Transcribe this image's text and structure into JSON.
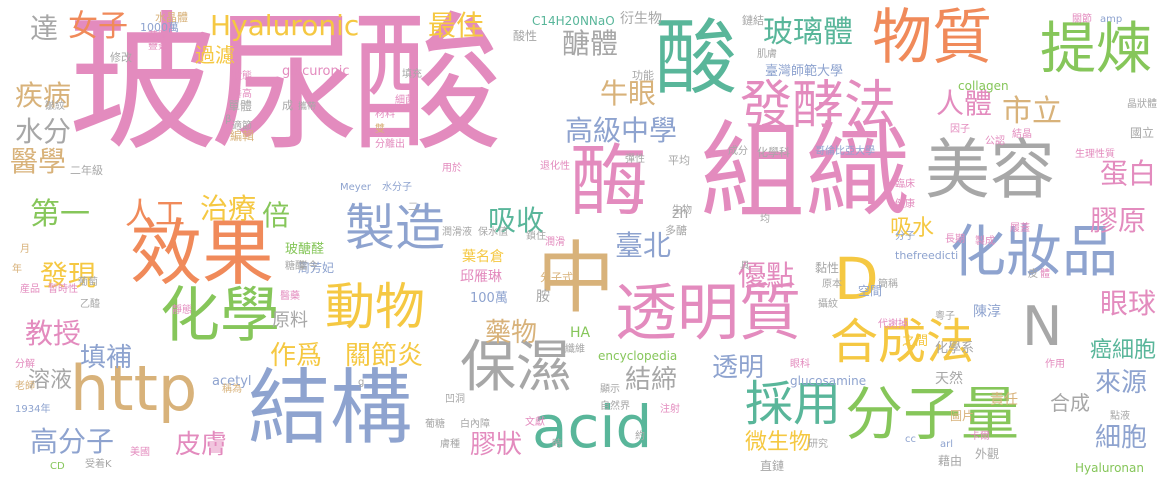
{
  "words": [
    {
      "text": "玻尿酸",
      "color": "#e38bbe"
    },
    {
      "text": "組織",
      "color": "#e38bbe"
    },
    {
      "text": "美容",
      "color": "#a7a7a7"
    },
    {
      "text": "效果",
      "color": "#f08a5a"
    },
    {
      "text": "結構",
      "color": "#8ea3cf"
    },
    {
      "text": "酶",
      "color": "#e38bbe"
    },
    {
      "text": "中",
      "color": "#d8b27a"
    },
    {
      "text": "化學",
      "color": "#86c65a"
    },
    {
      "text": "酸",
      "color": "#59b69a"
    },
    {
      "text": "物質",
      "color": "#f08a5a"
    },
    {
      "text": "提煉",
      "color": "#86c65a"
    },
    {
      "text": "發酵法",
      "color": "#e38bbe"
    },
    {
      "text": "化妝品",
      "color": "#8ea3cf"
    },
    {
      "text": "透明質",
      "color": "#e38bbe"
    },
    {
      "text": "製造",
      "color": "#8ea3cf"
    },
    {
      "text": "分子量",
      "color": "#86c65a"
    },
    {
      "text": "保濕",
      "color": "#a7a7a7"
    },
    {
      "text": "http",
      "color": "#d8b27a"
    },
    {
      "text": "合成法",
      "color": "#f5c842"
    },
    {
      "text": "acid",
      "color": "#59b69a"
    },
    {
      "text": "採用",
      "color": "#59b69a"
    },
    {
      "text": "動物",
      "color": "#f5c842"
    },
    {
      "text": "N",
      "color": "#a7a7a7"
    },
    {
      "text": "D",
      "color": "#f5c842"
    },
    {
      "text": "Hyaluronic",
      "color": "#f5c842"
    },
    {
      "text": "最佳",
      "color": "#f5c842"
    },
    {
      "text": "女子",
      "color": "#f08a5a"
    },
    {
      "text": "玻璃體",
      "color": "#59b69a"
    },
    {
      "text": "醣體",
      "color": "#a7a7a7"
    },
    {
      "text": "高級中學",
      "color": "#8ea3cf"
    },
    {
      "text": "人體",
      "color": "#e38bbe"
    },
    {
      "text": "市立",
      "color": "#d8b27a"
    },
    {
      "text": "牛眼",
      "color": "#d8b27a"
    },
    {
      "text": "蛋白",
      "color": "#e38bbe"
    },
    {
      "text": "膠原",
      "color": "#e38bbe"
    },
    {
      "text": "吸收",
      "color": "#59b69a"
    },
    {
      "text": "臺北",
      "color": "#8ea3cf"
    },
    {
      "text": "優點",
      "color": "#e38bbe"
    },
    {
      "text": "眼球",
      "color": "#e38bbe"
    },
    {
      "text": "藥物",
      "color": "#d8b27a"
    },
    {
      "text": "作爲",
      "color": "#f5c842"
    },
    {
      "text": "關節炎",
      "color": "#f5c842"
    },
    {
      "text": "結締",
      "color": "#a7a7a7"
    },
    {
      "text": "透明",
      "color": "#8ea3cf"
    },
    {
      "text": "來源",
      "color": "#8ea3cf"
    },
    {
      "text": "癌細胞",
      "color": "#59b69a"
    },
    {
      "text": "細胞",
      "color": "#8ea3cf"
    },
    {
      "text": "合成",
      "color": "#a7a7a7"
    },
    {
      "text": "膠狀",
      "color": "#e38bbe"
    },
    {
      "text": "微生物",
      "color": "#f5c842"
    },
    {
      "text": "皮膚",
      "color": "#e38bbe"
    },
    {
      "text": "高分子",
      "color": "#8ea3cf"
    },
    {
      "text": "填補",
      "color": "#8ea3cf"
    },
    {
      "text": "教授",
      "color": "#e38bbe"
    },
    {
      "text": "發現",
      "color": "#f5c842"
    },
    {
      "text": "第一",
      "color": "#86c65a"
    },
    {
      "text": "人工",
      "color": "#f08a5a"
    },
    {
      "text": "治療",
      "color": "#f5c842"
    },
    {
      "text": "倍",
      "color": "#86c65a"
    },
    {
      "text": "醫學",
      "color": "#d8b27a"
    },
    {
      "text": "水分",
      "color": "#a7a7a7"
    },
    {
      "text": "疾病",
      "color": "#d8b27a"
    },
    {
      "text": "達",
      "color": "#a7a7a7"
    },
    {
      "text": "溶液",
      "color": "#a7a7a7"
    },
    {
      "text": "原料",
      "color": "#a7a7a7"
    },
    {
      "text": "吸水",
      "color": "#f5c842"
    },
    {
      "text": "過濾",
      "color": "#f5c842"
    },
    {
      "text": "glucuronic",
      "color": "#e38bbe"
    },
    {
      "text": "C14H20NNaO",
      "color": "#59b69a"
    },
    {
      "text": "衍生物",
      "color": "#a7a7a7"
    },
    {
      "text": "酸性",
      "color": "#a7a7a7"
    },
    {
      "text": "臺灣師範大學",
      "color": "#8ea3cf"
    },
    {
      "text": "collagen",
      "color": "#86c65a"
    },
    {
      "text": "葉名倉",
      "color": "#f5c842"
    },
    {
      "text": "邱雁琳",
      "color": "#e38bbe"
    },
    {
      "text": "100萬",
      "color": "#8ea3cf"
    },
    {
      "text": "胺",
      "color": "#a7a7a7"
    },
    {
      "text": "HA",
      "color": "#86c65a"
    },
    {
      "text": "encyclopedia",
      "color": "#86c65a"
    },
    {
      "text": "acetyl",
      "color": "#8ea3cf"
    },
    {
      "text": "glucosamine",
      "color": "#8ea3cf"
    },
    {
      "text": "天然",
      "color": "#a7a7a7"
    },
    {
      "text": "責任",
      "color": "#d8b27a"
    },
    {
      "text": "zh",
      "color": "#a7a7a7"
    },
    {
      "text": "陳淳",
      "color": "#8ea3cf"
    },
    {
      "text": "玻醣醛",
      "color": "#86c65a"
    },
    {
      "text": "周芳妃",
      "color": "#8ea3cf"
    },
    {
      "text": "thefreedicti",
      "color": "#8ea3cf"
    },
    {
      "text": "Hyaluronan",
      "color": "#86c65a"
    },
    {
      "text": "化學系",
      "color": "#a7a7a7"
    },
    {
      "text": "之間",
      "color": "#f5c842"
    },
    {
      "text": "黏性",
      "color": "#a7a7a7"
    },
    {
      "text": "空間",
      "color": "#8ea3cf"
    },
    {
      "text": "直鏈",
      "color": "#a7a7a7"
    },
    {
      "text": "藉由",
      "color": "#a7a7a7"
    },
    {
      "text": "外觀",
      "color": "#a7a7a7"
    },
    {
      "text": "圖片",
      "color": "#d8b27a"
    },
    {
      "text": "國立",
      "color": "#a7a7a7"
    },
    {
      "text": "平均",
      "color": "#a7a7a7"
    },
    {
      "text": "分子式",
      "color": "#d8b27a"
    },
    {
      "text": "多醣",
      "color": "#a7a7a7"
    },
    {
      "text": "化學科",
      "color": "#a7a7a7"
    },
    {
      "text": "功能",
      "color": "#a7a7a7"
    },
    {
      "text": "肌膚",
      "color": "#a7a7a7"
    },
    {
      "text": "鏈結",
      "color": "#a7a7a7"
    },
    {
      "text": "水晶體",
      "color": "#d8b27a"
    },
    {
      "text": "1000萬",
      "color": "#8ea3cf"
    },
    {
      "text": "修改",
      "color": "#a7a7a7"
    },
    {
      "text": "單體",
      "color": "#a7a7a7"
    },
    {
      "text": "編輯",
      "color": "#d8b27a"
    },
    {
      "text": "成",
      "color": "#a7a7a7"
    },
    {
      "text": "攜帶",
      "color": "#a7a7a7"
    },
    {
      "text": "填充",
      "color": "#a7a7a7"
    },
    {
      "text": "細菌",
      "color": "#e38bbe"
    },
    {
      "text": "材料",
      "color": "#e38bbe"
    },
    {
      "text": "分離出",
      "color": "#e38bbe"
    },
    {
      "text": "二年級",
      "color": "#a7a7a7"
    },
    {
      "text": "葡萄",
      "color": "#a7a7a7"
    },
    {
      "text": "乙醯",
      "color": "#a7a7a7"
    },
    {
      "text": "産品",
      "color": "#e38bbe"
    },
    {
      "text": "暫時性",
      "color": "#e38bbe"
    },
    {
      "text": "Meyer",
      "color": "#8ea3cf"
    },
    {
      "text": "水分子",
      "color": "#8ea3cf"
    },
    {
      "text": "用於",
      "color": "#e38bbe"
    },
    {
      "text": "潤滑液",
      "color": "#a7a7a7"
    },
    {
      "text": "保水值",
      "color": "#a7a7a7"
    },
    {
      "text": "鎖住",
      "color": "#a7a7a7"
    },
    {
      "text": "彈性",
      "color": "#a7a7a7"
    },
    {
      "text": "退化性",
      "color": "#e38bbe"
    },
    {
      "text": "潤滑",
      "color": "#e38bbe"
    },
    {
      "text": "生物",
      "color": "#a7a7a7"
    },
    {
      "text": "成分",
      "color": "#a7a7a7"
    },
    {
      "text": "哥倫比亞大學",
      "color": "#8ea3cf"
    },
    {
      "text": "因子",
      "color": "#e38bbe"
    },
    {
      "text": "公認",
      "color": "#e38bbe"
    },
    {
      "text": "結晶",
      "color": "#e38bbe"
    },
    {
      "text": "晶狀體",
      "color": "#a7a7a7"
    },
    {
      "text": "生理性質",
      "color": "#e38bbe"
    },
    {
      "text": "關節",
      "color": "#e38bbe"
    },
    {
      "text": "amp",
      "color": "#8ea3cf"
    },
    {
      "text": "臨床",
      "color": "#e38bbe"
    },
    {
      "text": "健康",
      "color": "#e38bbe"
    },
    {
      "text": "長期",
      "color": "#e38bbe"
    },
    {
      "text": "分子",
      "color": "#8ea3cf"
    },
    {
      "text": "履蓋",
      "color": "#e38bbe"
    },
    {
      "text": "製成",
      "color": "#e38bbe"
    },
    {
      "text": "簡稱",
      "color": "#a7a7a7"
    },
    {
      "text": "原本",
      "color": "#a7a7a7"
    },
    {
      "text": "攝紋",
      "color": "#a7a7a7"
    },
    {
      "text": "粵子",
      "color": "#a7a7a7"
    },
    {
      "text": "代謝掉",
      "color": "#e38bbe"
    },
    {
      "text": "作用",
      "color": "#e38bbe"
    },
    {
      "text": "眼科",
      "color": "#e38bbe"
    },
    {
      "text": "具",
      "color": "#a7a7a7"
    },
    {
      "text": "皮",
      "color": "#a7a7a7"
    },
    {
      "text": "老師",
      "color": "#d8b27a"
    },
    {
      "text": "分解",
      "color": "#e38bbe"
    },
    {
      "text": "1934年",
      "color": "#8ea3cf"
    },
    {
      "text": "受着",
      "color": "#a7a7a7"
    },
    {
      "text": "美國",
      "color": "#e38bbe"
    },
    {
      "text": "CD",
      "color": "#86c65a"
    },
    {
      "text": "K",
      "color": "#a7a7a7"
    },
    {
      "text": "月",
      "color": "#d8b27a"
    },
    {
      "text": "年",
      "color": "#d8b27a"
    },
    {
      "text": "醫藥",
      "color": "#e38bbe"
    },
    {
      "text": "靜態",
      "color": "#e38bbe"
    },
    {
      "text": "當今",
      "color": "#a7a7a7"
    },
    {
      "text": "糖醛",
      "color": "#a7a7a7"
    },
    {
      "text": "葡糖",
      "color": "#a7a7a7"
    },
    {
      "text": "白內障",
      "color": "#a7a7a7"
    },
    {
      "text": "膚種",
      "color": "#a7a7a7"
    },
    {
      "text": "文獻",
      "color": "#e38bbe"
    },
    {
      "text": "顯示",
      "color": "#a7a7a7"
    },
    {
      "text": "自然界",
      "color": "#a7a7a7"
    },
    {
      "text": "注射",
      "color": "#e38bbe"
    },
    {
      "text": "約",
      "color": "#a7a7a7"
    },
    {
      "text": "稱為",
      "color": "#d8b27a"
    },
    {
      "text": "凹洞",
      "color": "#a7a7a7"
    },
    {
      "text": "研究",
      "color": "#a7a7a7"
    },
    {
      "text": "卡爾",
      "color": "#e38bbe"
    },
    {
      "text": "點液",
      "color": "#a7a7a7"
    },
    {
      "text": "arl",
      "color": "#8ea3cf"
    },
    {
      "text": "cc",
      "color": "#8ea3cf"
    },
    {
      "text": "時",
      "color": "#a7a7a7"
    },
    {
      "text": "纖維",
      "color": "#a7a7a7"
    },
    {
      "text": "β",
      "color": "#a7a7a7"
    },
    {
      "text": "均",
      "color": "#a7a7a7"
    },
    {
      "text": "體",
      "color": "#e38bbe"
    },
    {
      "text": "g",
      "color": "#a7a7a7"
    },
    {
      "text": "二",
      "color": "#a7a7a7"
    },
    {
      "text": "雙",
      "color": "#d8b27a"
    },
    {
      "text": "英賦",
      "color": "#e38bbe"
    },
    {
      "text": "疊簽",
      "color": "#e38bbe"
    },
    {
      "text": "狀態",
      "color": "#e38bbe"
    },
    {
      "text": "垂高",
      "color": "#e38bbe"
    },
    {
      "text": "適節",
      "color": "#a7a7a7"
    },
    {
      "text": "皺紋",
      "color": "#a7a7a7"
    }
  ]
}
